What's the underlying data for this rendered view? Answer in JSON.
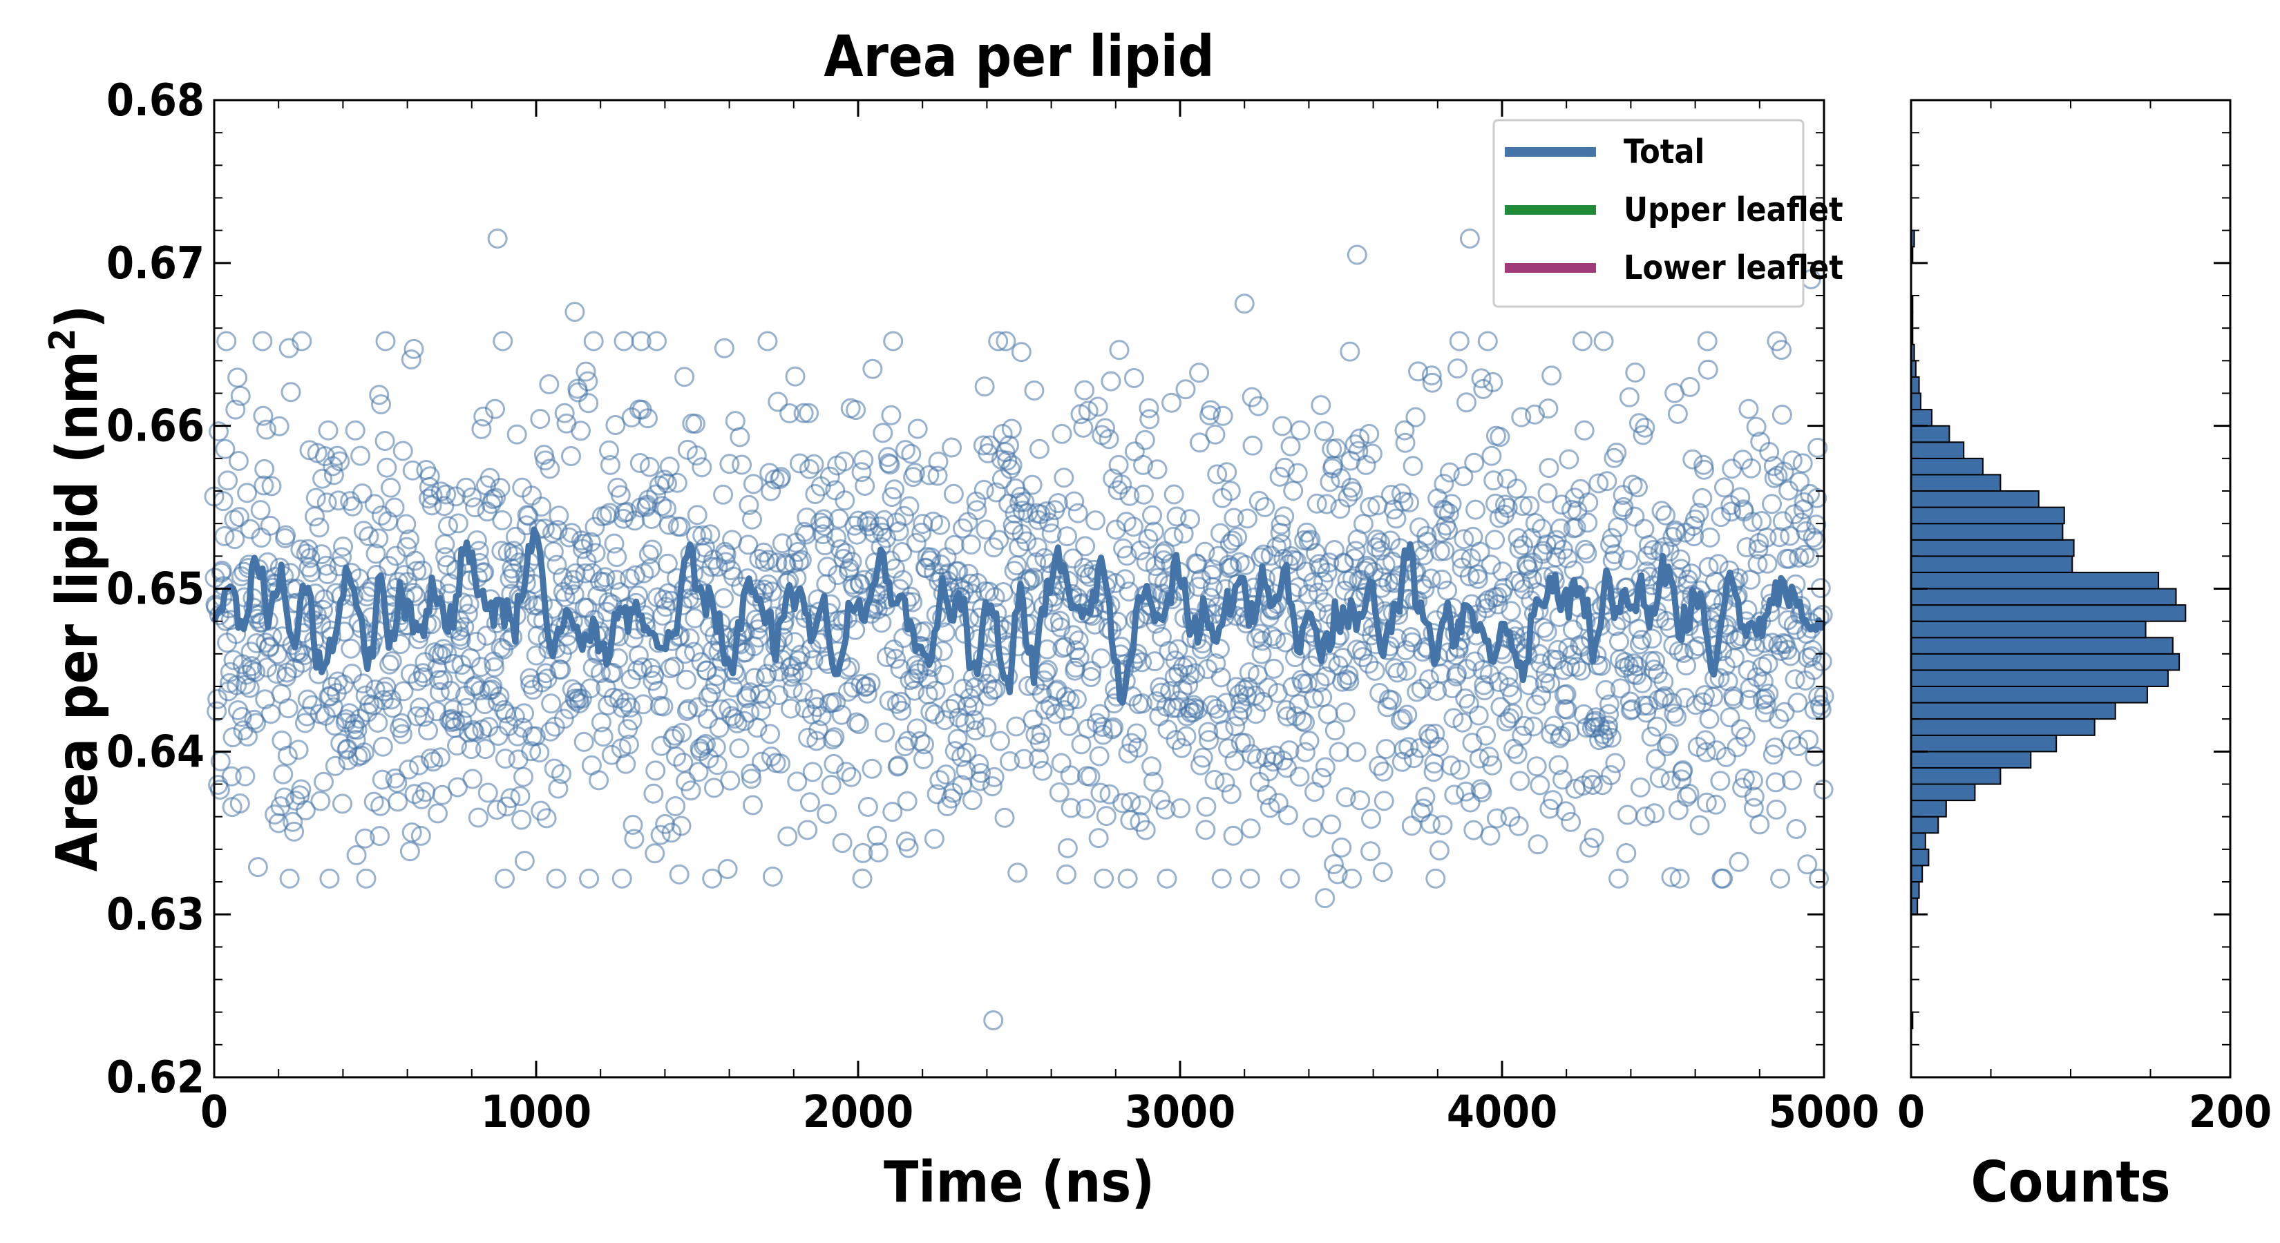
{
  "chart_data": [
    {
      "type": "scatter",
      "title": "Area per lipid",
      "xlabel": "Time (ns)",
      "ylabel_main": "Area per lipid (nm",
      "ylabel_sup": "2",
      "ylabel_close": ")",
      "xlim": [
        0,
        5000
      ],
      "ylim": [
        0.62,
        0.68
      ],
      "xticks": [
        "0",
        "1000",
        "2000",
        "3000",
        "4000",
        "5000"
      ],
      "yticks": [
        "0.62",
        "0.63",
        "0.64",
        "0.65",
        "0.66",
        "0.67",
        "0.68"
      ],
      "grid": false,
      "legend_position": "top-right",
      "series": [
        {
          "name": "Total",
          "color": "#4575a8",
          "style": "line (running average) + open-circle scatter"
        },
        {
          "name": "Upper leaflet",
          "color": "#228b3a"
        },
        {
          "name": "Lower leaflet",
          "color": "#a13a78"
        }
      ],
      "notable_points": [
        {
          "x": 880,
          "y": 0.6715
        },
        {
          "x": 1120,
          "y": 0.667
        },
        {
          "x": 3550,
          "y": 0.6705
        },
        {
          "x": 3900,
          "y": 0.6715
        },
        {
          "x": 3200,
          "y": 0.6675
        },
        {
          "x": 2420,
          "y": 0.6235
        },
        {
          "x": 3450,
          "y": 0.631
        },
        {
          "x": 4960,
          "y": 0.669
        }
      ],
      "sample_count_estimate": 2500,
      "total_mean": 0.648,
      "total_running_average_range": [
        0.643,
        0.654
      ]
    },
    {
      "type": "bar",
      "orientation": "horizontal",
      "xlabel": "Counts",
      "xlim": [
        0,
        200
      ],
      "xticks": [
        "0",
        "200"
      ],
      "ylim": [
        0.62,
        0.68
      ],
      "bin_width": 0.001,
      "bin_centers": [
        0.6235,
        0.6305,
        0.6315,
        0.6325,
        0.6335,
        0.6345,
        0.6355,
        0.6365,
        0.6375,
        0.6385,
        0.6395,
        0.6405,
        0.6415,
        0.6425,
        0.6435,
        0.6445,
        0.6455,
        0.6465,
        0.6475,
        0.6485,
        0.6495,
        0.6505,
        0.6515,
        0.6525,
        0.6535,
        0.6545,
        0.6555,
        0.6565,
        0.6575,
        0.6585,
        0.6595,
        0.6605,
        0.6615,
        0.6625,
        0.6635,
        0.6645,
        0.6655,
        0.6665,
        0.6675,
        0.6705,
        0.6715
      ],
      "counts": [
        1,
        4,
        5,
        7,
        11,
        9,
        17,
        22,
        40,
        56,
        75,
        91,
        115,
        128,
        148,
        161,
        168,
        164,
        147,
        172,
        166,
        155,
        101,
        102,
        95,
        96,
        80,
        56,
        45,
        33,
        24,
        13,
        6,
        5,
        3,
        2,
        1,
        1,
        1,
        1,
        2
      ],
      "color": "#3d6ea6"
    }
  ]
}
